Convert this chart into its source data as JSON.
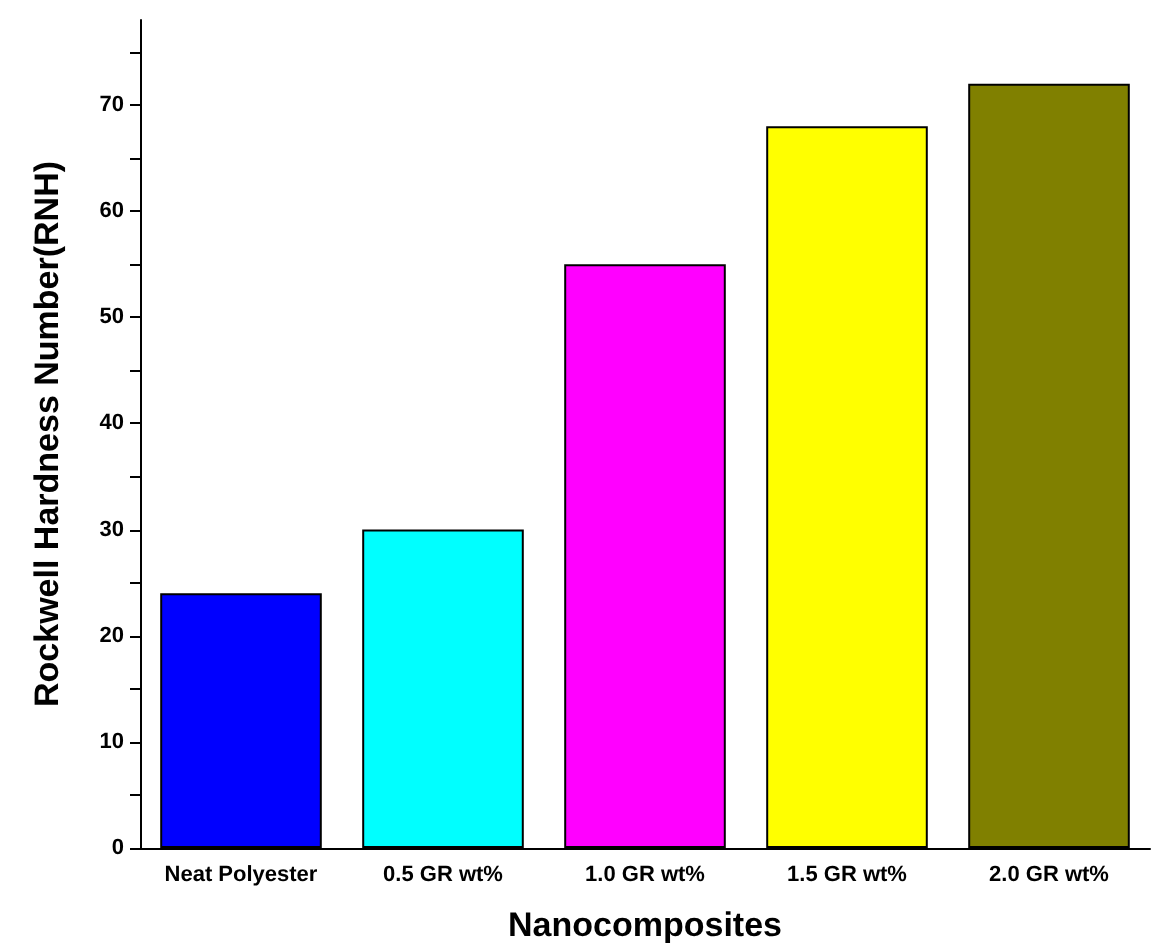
{
  "chart_data": {
    "type": "bar",
    "xlabel": "Nanocomposites",
    "ylabel": "Rockwell Hardness Number(RNH)",
    "categories": [
      "Neat Polyester",
      "0.5 GR wt%",
      "1.0 GR wt%",
      "1.5 GR wt%",
      "2.0 GR wt%"
    ],
    "values": [
      24,
      30,
      55,
      68,
      72
    ],
    "colors": [
      "#0000ff",
      "#00ffff",
      "#ff00ff",
      "#ffff00",
      "#808000"
    ],
    "ylim": [
      0,
      78
    ],
    "yticks": [
      0,
      {
        "value": 5,
        "label": null
      },
      10,
      {
        "value": 15,
        "label": null
      },
      20,
      {
        "value": 25,
        "label": null
      },
      30,
      {
        "value": 35,
        "label": null
      },
      40,
      {
        "value": 45,
        "label": null
      },
      50,
      {
        "value": 55,
        "label": null
      },
      60,
      {
        "value": 65,
        "label": null
      },
      70,
      {
        "value": 75,
        "label": null
      }
    ],
    "grid": false
  }
}
